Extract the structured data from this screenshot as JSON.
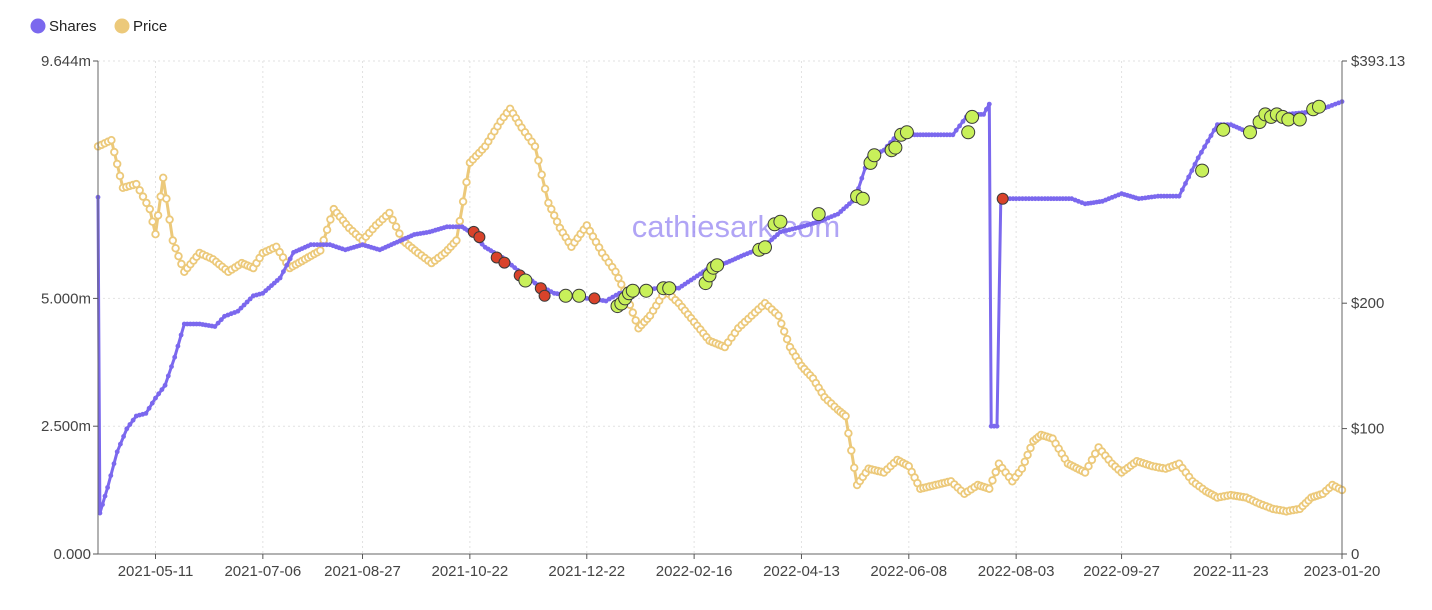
{
  "chart_data": {
    "type": "line",
    "watermark": "cathiesark.com",
    "legend": {
      "placement": "top-left",
      "items": [
        {
          "name": "Shares",
          "color": "#7b68ee"
        },
        {
          "name": "Price",
          "color": "#ecc97a"
        }
      ]
    },
    "x_ticks": [
      "2021-05-11",
      "2021-07-06",
      "2021-08-27",
      "2021-10-22",
      "2021-12-22",
      "2022-02-16",
      "2022-04-13",
      "2022-06-08",
      "2022-08-03",
      "2022-09-27",
      "2022-11-23",
      "2023-01-20"
    ],
    "x_range": [
      "2021-04-11",
      "2023-01-20"
    ],
    "y_left": {
      "ticks": [
        "0.000",
        "2.500m",
        "5.000m",
        "9.644m"
      ],
      "values": [
        0,
        2.5,
        5.0,
        9.644
      ],
      "unit": "millions",
      "range": [
        0,
        9.644
      ]
    },
    "y_right": {
      "ticks": [
        "0",
        "$100",
        "$200",
        "$393.13"
      ],
      "values": [
        0,
        100,
        200,
        393.13
      ],
      "range": [
        0,
        393.13
      ]
    },
    "grid": true,
    "colors": {
      "shares": "#7b68ee",
      "price": "#ecc97a",
      "buy": "#c8f05a",
      "sell": "#d9432b",
      "grid": "#e2e2e2",
      "axis": "#555555"
    },
    "series": [
      {
        "name": "Shares",
        "axis": "left",
        "points": [
          [
            "2021-04-11",
            6.98
          ],
          [
            "2021-04-12",
            0.8
          ],
          [
            "2021-04-16",
            1.3
          ],
          [
            "2021-04-21",
            2.0
          ],
          [
            "2021-04-26",
            2.45
          ],
          [
            "2021-05-01",
            2.7
          ],
          [
            "2021-05-06",
            2.75
          ],
          [
            "2021-05-11",
            3.05
          ],
          [
            "2021-05-16",
            3.3
          ],
          [
            "2021-05-21",
            3.85
          ],
          [
            "2021-05-26",
            4.5
          ],
          [
            "2021-06-03",
            4.5
          ],
          [
            "2021-06-11",
            4.45
          ],
          [
            "2021-06-16",
            4.65
          ],
          [
            "2021-06-23",
            4.75
          ],
          [
            "2021-07-01",
            5.05
          ],
          [
            "2021-07-06",
            5.1
          ],
          [
            "2021-07-15",
            5.4
          ],
          [
            "2021-07-22",
            5.9
          ],
          [
            "2021-07-31",
            6.05
          ],
          [
            "2021-08-10",
            6.05
          ],
          [
            "2021-08-18",
            5.95
          ],
          [
            "2021-08-27",
            6.05
          ],
          [
            "2021-09-05",
            5.95
          ],
          [
            "2021-09-14",
            6.1
          ],
          [
            "2021-09-23",
            6.25
          ],
          [
            "2021-10-01",
            6.3
          ],
          [
            "2021-10-10",
            6.4
          ],
          [
            "2021-10-18",
            6.4
          ],
          [
            "2021-10-22",
            6.3
          ],
          [
            "2021-10-30",
            6.0
          ],
          [
            "2021-11-08",
            5.8
          ],
          [
            "2021-11-16",
            5.55
          ],
          [
            "2021-11-25",
            5.3
          ],
          [
            "2021-12-05",
            5.1
          ],
          [
            "2021-12-14",
            5.05
          ],
          [
            "2021-12-22",
            5.0
          ],
          [
            "2022-01-01",
            4.95
          ],
          [
            "2022-01-08",
            5.1
          ],
          [
            "2022-01-18",
            5.15
          ],
          [
            "2022-01-28",
            5.2
          ],
          [
            "2022-02-08",
            5.2
          ],
          [
            "2022-02-16",
            5.4
          ],
          [
            "2022-02-24",
            5.6
          ],
          [
            "2022-03-05",
            5.7
          ],
          [
            "2022-03-14",
            5.85
          ],
          [
            "2022-03-24",
            6.0
          ],
          [
            "2022-04-02",
            6.3
          ],
          [
            "2022-04-13",
            6.4
          ],
          [
            "2022-04-22",
            6.5
          ],
          [
            "2022-05-02",
            6.65
          ],
          [
            "2022-05-11",
            6.95
          ],
          [
            "2022-05-18",
            7.75
          ],
          [
            "2022-05-26",
            7.9
          ],
          [
            "2022-06-02",
            8.2
          ],
          [
            "2022-06-08",
            8.2
          ],
          [
            "2022-06-20",
            8.2
          ],
          [
            "2022-07-01",
            8.2
          ],
          [
            "2022-07-08",
            8.55
          ],
          [
            "2022-07-13",
            8.6
          ],
          [
            "2022-07-17",
            8.6
          ],
          [
            "2022-07-20",
            8.8
          ],
          [
            "2022-07-21",
            2.5
          ],
          [
            "2022-07-24",
            2.5
          ],
          [
            "2022-07-26",
            6.95
          ],
          [
            "2022-08-03",
            6.95
          ],
          [
            "2022-08-18",
            6.95
          ],
          [
            "2022-09-01",
            6.95
          ],
          [
            "2022-09-08",
            6.85
          ],
          [
            "2022-09-17",
            6.9
          ],
          [
            "2022-09-27",
            7.05
          ],
          [
            "2022-10-06",
            6.95
          ],
          [
            "2022-10-16",
            7.0
          ],
          [
            "2022-10-27",
            7.0
          ],
          [
            "2022-11-06",
            7.75
          ],
          [
            "2022-11-16",
            8.4
          ],
          [
            "2022-11-23",
            8.4
          ],
          [
            "2022-12-02",
            8.25
          ],
          [
            "2022-12-12",
            8.5
          ],
          [
            "2022-12-22",
            8.6
          ],
          [
            "2023-01-04",
            8.65
          ],
          [
            "2023-01-13",
            8.75
          ],
          [
            "2023-01-20",
            8.85
          ]
        ]
      },
      {
        "name": "Price",
        "axis": "right",
        "points": [
          [
            "2021-04-11",
            325
          ],
          [
            "2021-04-18",
            330
          ],
          [
            "2021-04-24",
            292
          ],
          [
            "2021-05-01",
            295
          ],
          [
            "2021-05-08",
            275
          ],
          [
            "2021-05-11",
            255
          ],
          [
            "2021-05-15",
            300
          ],
          [
            "2021-05-20",
            250
          ],
          [
            "2021-05-26",
            225
          ],
          [
            "2021-06-03",
            240
          ],
          [
            "2021-06-10",
            235
          ],
          [
            "2021-06-18",
            225
          ],
          [
            "2021-06-25",
            232
          ],
          [
            "2021-07-01",
            228
          ],
          [
            "2021-07-06",
            240
          ],
          [
            "2021-07-13",
            245
          ],
          [
            "2021-07-20",
            228
          ],
          [
            "2021-07-28",
            235
          ],
          [
            "2021-08-05",
            242
          ],
          [
            "2021-08-12",
            275
          ],
          [
            "2021-08-20",
            260
          ],
          [
            "2021-08-27",
            250
          ],
          [
            "2021-09-03",
            262
          ],
          [
            "2021-09-10",
            272
          ],
          [
            "2021-09-17",
            250
          ],
          [
            "2021-09-25",
            240
          ],
          [
            "2021-10-02",
            232
          ],
          [
            "2021-10-09",
            240
          ],
          [
            "2021-10-15",
            250
          ],
          [
            "2021-10-22",
            312
          ],
          [
            "2021-10-30",
            325
          ],
          [
            "2021-11-07",
            345
          ],
          [
            "2021-11-12",
            355
          ],
          [
            "2021-11-18",
            340
          ],
          [
            "2021-11-25",
            325
          ],
          [
            "2021-12-02",
            280
          ],
          [
            "2021-12-08",
            260
          ],
          [
            "2021-12-14",
            245
          ],
          [
            "2021-12-22",
            262
          ],
          [
            "2021-12-30",
            240
          ],
          [
            "2022-01-06",
            225
          ],
          [
            "2022-01-12",
            205
          ],
          [
            "2022-01-18",
            180
          ],
          [
            "2022-01-24",
            190
          ],
          [
            "2022-02-01",
            210
          ],
          [
            "2022-02-08",
            200
          ],
          [
            "2022-02-16",
            185
          ],
          [
            "2022-02-24",
            170
          ],
          [
            "2022-03-04",
            165
          ],
          [
            "2022-03-11",
            180
          ],
          [
            "2022-03-18",
            190
          ],
          [
            "2022-03-25",
            200
          ],
          [
            "2022-04-01",
            190
          ],
          [
            "2022-04-07",
            165
          ],
          [
            "2022-04-13",
            150
          ],
          [
            "2022-04-19",
            140
          ],
          [
            "2022-04-25",
            125
          ],
          [
            "2022-05-02",
            115
          ],
          [
            "2022-05-06",
            110
          ],
          [
            "2022-05-12",
            55
          ],
          [
            "2022-05-18",
            68
          ],
          [
            "2022-05-26",
            65
          ],
          [
            "2022-06-02",
            75
          ],
          [
            "2022-06-08",
            70
          ],
          [
            "2022-06-14",
            52
          ],
          [
            "2022-06-22",
            55
          ],
          [
            "2022-06-30",
            58
          ],
          [
            "2022-07-07",
            48
          ],
          [
            "2022-07-14",
            55
          ],
          [
            "2022-07-20",
            52
          ],
          [
            "2022-07-25",
            72
          ],
          [
            "2022-08-01",
            58
          ],
          [
            "2022-08-06",
            68
          ],
          [
            "2022-08-12",
            90
          ],
          [
            "2022-08-16",
            95
          ],
          [
            "2022-08-22",
            92
          ],
          [
            "2022-08-30",
            72
          ],
          [
            "2022-09-08",
            65
          ],
          [
            "2022-09-15",
            85
          ],
          [
            "2022-09-22",
            72
          ],
          [
            "2022-09-27",
            65
          ],
          [
            "2022-10-05",
            74
          ],
          [
            "2022-10-13",
            70
          ],
          [
            "2022-10-20",
            68
          ],
          [
            "2022-10-27",
            72
          ],
          [
            "2022-11-03",
            58
          ],
          [
            "2022-11-10",
            50
          ],
          [
            "2022-11-16",
            45
          ],
          [
            "2022-11-23",
            47
          ],
          [
            "2022-12-01",
            45
          ],
          [
            "2022-12-08",
            40
          ],
          [
            "2022-12-15",
            36
          ],
          [
            "2022-12-22",
            34
          ],
          [
            "2022-12-29",
            36
          ],
          [
            "2023-01-04",
            45
          ],
          [
            "2023-01-10",
            48
          ],
          [
            "2023-01-15",
            55
          ],
          [
            "2023-01-20",
            51
          ]
        ]
      }
    ],
    "trades": [
      {
        "date": "2021-10-24",
        "shares": 6.3,
        "type": "sell"
      },
      {
        "date": "2021-10-27",
        "shares": 6.2,
        "type": "sell"
      },
      {
        "date": "2021-11-05",
        "shares": 5.8,
        "type": "sell"
      },
      {
        "date": "2021-11-09",
        "shares": 5.7,
        "type": "sell"
      },
      {
        "date": "2021-11-17",
        "shares": 5.45,
        "type": "sell"
      },
      {
        "date": "2021-11-20",
        "shares": 5.35,
        "type": "buy"
      },
      {
        "date": "2021-11-28",
        "shares": 5.2,
        "type": "sell"
      },
      {
        "date": "2021-11-30",
        "shares": 5.05,
        "type": "sell"
      },
      {
        "date": "2021-12-11",
        "shares": 5.05,
        "type": "buy"
      },
      {
        "date": "2021-12-18",
        "shares": 5.05,
        "type": "buy"
      },
      {
        "date": "2021-12-26",
        "shares": 5.0,
        "type": "sell"
      },
      {
        "date": "2022-01-07",
        "shares": 4.85,
        "type": "buy"
      },
      {
        "date": "2022-01-09",
        "shares": 4.9,
        "type": "buy"
      },
      {
        "date": "2022-01-11",
        "shares": 5.0,
        "type": "buy"
      },
      {
        "date": "2022-01-13",
        "shares": 5.1,
        "type": "buy"
      },
      {
        "date": "2022-01-15",
        "shares": 5.15,
        "type": "buy"
      },
      {
        "date": "2022-01-22",
        "shares": 5.15,
        "type": "buy"
      },
      {
        "date": "2022-01-31",
        "shares": 5.2,
        "type": "buy"
      },
      {
        "date": "2022-02-03",
        "shares": 5.2,
        "type": "buy"
      },
      {
        "date": "2022-02-22",
        "shares": 5.3,
        "type": "buy"
      },
      {
        "date": "2022-02-24",
        "shares": 5.45,
        "type": "buy"
      },
      {
        "date": "2022-02-26",
        "shares": 5.6,
        "type": "buy"
      },
      {
        "date": "2022-02-28",
        "shares": 5.65,
        "type": "buy"
      },
      {
        "date": "2022-03-22",
        "shares": 5.95,
        "type": "buy"
      },
      {
        "date": "2022-03-25",
        "shares": 6.0,
        "type": "buy"
      },
      {
        "date": "2022-03-30",
        "shares": 6.45,
        "type": "buy"
      },
      {
        "date": "2022-04-02",
        "shares": 6.5,
        "type": "buy"
      },
      {
        "date": "2022-04-22",
        "shares": 6.65,
        "type": "buy"
      },
      {
        "date": "2022-05-12",
        "shares": 7.0,
        "type": "buy"
      },
      {
        "date": "2022-05-15",
        "shares": 6.95,
        "type": "buy"
      },
      {
        "date": "2022-05-19",
        "shares": 7.65,
        "type": "buy"
      },
      {
        "date": "2022-05-21",
        "shares": 7.8,
        "type": "buy"
      },
      {
        "date": "2022-05-30",
        "shares": 7.9,
        "type": "buy"
      },
      {
        "date": "2022-06-01",
        "shares": 7.95,
        "type": "buy"
      },
      {
        "date": "2022-06-04",
        "shares": 8.2,
        "type": "buy"
      },
      {
        "date": "2022-06-07",
        "shares": 8.25,
        "type": "buy"
      },
      {
        "date": "2022-07-09",
        "shares": 8.25,
        "type": "buy"
      },
      {
        "date": "2022-07-11",
        "shares": 8.55,
        "type": "buy"
      },
      {
        "date": "2022-07-27",
        "shares": 6.95,
        "type": "sell"
      },
      {
        "date": "2022-11-08",
        "shares": 7.5,
        "type": "buy"
      },
      {
        "date": "2022-11-19",
        "shares": 8.3,
        "type": "buy"
      },
      {
        "date": "2022-12-03",
        "shares": 8.25,
        "type": "buy"
      },
      {
        "date": "2022-12-08",
        "shares": 8.45,
        "type": "buy"
      },
      {
        "date": "2022-12-11",
        "shares": 8.6,
        "type": "buy"
      },
      {
        "date": "2022-12-14",
        "shares": 8.55,
        "type": "buy"
      },
      {
        "date": "2022-12-17",
        "shares": 8.6,
        "type": "buy"
      },
      {
        "date": "2022-12-20",
        "shares": 8.55,
        "type": "buy"
      },
      {
        "date": "2022-12-23",
        "shares": 8.5,
        "type": "buy"
      },
      {
        "date": "2022-12-29",
        "shares": 8.5,
        "type": "buy"
      },
      {
        "date": "2023-01-05",
        "shares": 8.7,
        "type": "buy"
      },
      {
        "date": "2023-01-08",
        "shares": 8.75,
        "type": "buy"
      }
    ]
  }
}
